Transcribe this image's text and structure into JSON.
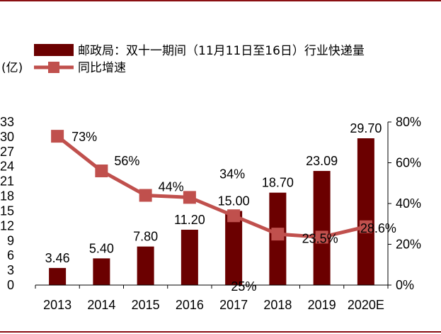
{
  "chart_data": {
    "type": "bar+line",
    "unit_label": "(亿)",
    "categories": [
      "2013",
      "2014",
      "2015",
      "2016",
      "2017",
      "2018",
      "2019",
      "2020E"
    ],
    "series": [
      {
        "name": "邮政局：双十一期间（11月11日至16日）行业快递量",
        "type": "bar",
        "axis": "left",
        "color": "#6b0000",
        "values": [
          3.46,
          5.4,
          7.8,
          11.2,
          15.0,
          18.7,
          23.09,
          29.7
        ],
        "labels": [
          "3.46",
          "5.40",
          "7.80",
          "11.20",
          "15.00",
          "18.70",
          "23.09",
          "29.70"
        ]
      },
      {
        "name": "同比增速",
        "type": "line",
        "axis": "right",
        "color": "#c0504d",
        "values": [
          73,
          56,
          44,
          43,
          34,
          25,
          23.5,
          28.6
        ],
        "labels": [
          "73%",
          "56%",
          "44%",
          "",
          "34%",
          "25%",
          "23.5%",
          "28.6%"
        ]
      }
    ],
    "y_left": {
      "min": 0,
      "max": 33,
      "ticks": [
        "0",
        "3",
        "6",
        "9",
        "12",
        "15",
        "18",
        "21",
        "24",
        "27",
        "30",
        "33"
      ]
    },
    "y_right": {
      "min": 0,
      "max": 80,
      "ticks": [
        "0%",
        "20%",
        "40%",
        "60%",
        "80%"
      ]
    },
    "grid": false,
    "legend_position": "top"
  }
}
